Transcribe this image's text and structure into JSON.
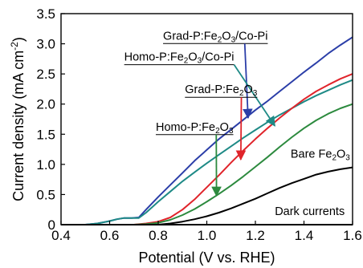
{
  "chart_data": {
    "type": "line",
    "xlabel": "Potential (V vs. RHE)",
    "ylabel": {
      "main": "Current density (mA cm",
      "sup": "-2",
      "close": ")"
    },
    "xlim": [
      0.4,
      1.6
    ],
    "ylim": [
      0,
      3.5
    ],
    "x_ticks": [
      "0.4",
      "0.6",
      "0.8",
      "1.0",
      "1.2",
      "1.4",
      "1.6"
    ],
    "y_ticks": [
      "0",
      "0.5",
      "1.0",
      "1.5",
      "2.0",
      "2.5",
      "3.0",
      "3.5"
    ],
    "grid": false,
    "series": [
      {
        "id": "grad_copi",
        "color": "#2b3ea8",
        "label_parts": [
          {
            "t": "Grad-P:Fe",
            "sub": false
          },
          {
            "t": "2",
            "sub": true
          },
          {
            "t": "O",
            "sub": false
          },
          {
            "t": "3",
            "sub": true
          },
          {
            "t": "/Co-Pi",
            "sub": false
          }
        ],
        "underline": true,
        "x": [
          0.5,
          0.55,
          0.6,
          0.63,
          0.66,
          0.69,
          0.72,
          0.75,
          0.8,
          0.85,
          0.9,
          0.95,
          1.0,
          1.05,
          1.1,
          1.15,
          1.2,
          1.25,
          1.3,
          1.35,
          1.4,
          1.45,
          1.5,
          1.55,
          1.6
        ],
        "y": [
          0.0,
          0.02,
          0.06,
          0.09,
          0.11,
          0.11,
          0.12,
          0.25,
          0.46,
          0.66,
          0.86,
          1.06,
          1.24,
          1.42,
          1.58,
          1.74,
          1.9,
          2.05,
          2.21,
          2.37,
          2.53,
          2.68,
          2.84,
          2.98,
          3.11
        ]
      },
      {
        "id": "homo_copi",
        "color": "#1e8a86",
        "label_parts": [
          {
            "t": "Homo-P:Fe",
            "sub": false
          },
          {
            "t": "2",
            "sub": true
          },
          {
            "t": "O",
            "sub": false
          },
          {
            "t": "3",
            "sub": true
          },
          {
            "t": "/Co-Pi",
            "sub": false
          }
        ],
        "underline": true,
        "x": [
          0.5,
          0.55,
          0.6,
          0.63,
          0.66,
          0.69,
          0.72,
          0.75,
          0.8,
          0.85,
          0.9,
          0.95,
          1.0,
          1.05,
          1.1,
          1.15,
          1.2,
          1.25,
          1.3,
          1.35,
          1.4,
          1.45,
          1.5,
          1.55,
          1.6
        ],
        "y": [
          0.0,
          0.02,
          0.06,
          0.09,
          0.11,
          0.11,
          0.11,
          0.2,
          0.38,
          0.55,
          0.72,
          0.87,
          1.02,
          1.16,
          1.3,
          1.44,
          1.57,
          1.7,
          1.82,
          1.93,
          2.04,
          2.14,
          2.23,
          2.32,
          2.4
        ]
      },
      {
        "id": "grad",
        "color": "#e0242b",
        "label_parts": [
          {
            "t": "Grad-P:Fe",
            "sub": false
          },
          {
            "t": "2",
            "sub": true
          },
          {
            "t": "O",
            "sub": false
          },
          {
            "t": "3",
            "sub": true
          }
        ],
        "underline": true,
        "x": [
          0.7,
          0.75,
          0.8,
          0.85,
          0.9,
          0.95,
          1.0,
          1.05,
          1.1,
          1.15,
          1.2,
          1.25,
          1.3,
          1.35,
          1.4,
          1.45,
          1.5,
          1.55,
          1.6
        ],
        "y": [
          0.0,
          0.02,
          0.05,
          0.12,
          0.25,
          0.42,
          0.62,
          0.82,
          1.03,
          1.23,
          1.42,
          1.6,
          1.77,
          1.93,
          2.08,
          2.21,
          2.32,
          2.42,
          2.5
        ]
      },
      {
        "id": "homo",
        "color": "#2c8a3e",
        "label_parts": [
          {
            "t": "Homo-P:Fe",
            "sub": false
          },
          {
            "t": "2",
            "sub": true
          },
          {
            "t": "O",
            "sub": false
          },
          {
            "t": "3",
            "sub": true
          }
        ],
        "underline": true,
        "x": [
          0.7,
          0.75,
          0.8,
          0.85,
          0.9,
          0.95,
          1.0,
          1.05,
          1.1,
          1.15,
          1.2,
          1.25,
          1.3,
          1.35,
          1.4,
          1.45,
          1.5,
          1.55,
          1.6
        ],
        "y": [
          0.0,
          0.01,
          0.03,
          0.08,
          0.16,
          0.26,
          0.38,
          0.51,
          0.65,
          0.8,
          0.96,
          1.12,
          1.29,
          1.45,
          1.6,
          1.73,
          1.84,
          1.93,
          2.0
        ]
      },
      {
        "id": "bare",
        "color": "#000000",
        "label_parts": [
          {
            "t": "Bare Fe",
            "sub": false
          },
          {
            "t": "2",
            "sub": true
          },
          {
            "t": "O",
            "sub": false
          },
          {
            "t": "3",
            "sub": true
          }
        ],
        "underline": false,
        "x": [
          0.8,
          0.85,
          0.9,
          0.95,
          1.0,
          1.05,
          1.1,
          1.15,
          1.2,
          1.25,
          1.3,
          1.35,
          1.4,
          1.45,
          1.5,
          1.55,
          1.6
        ],
        "y": [
          0.0,
          0.02,
          0.05,
          0.09,
          0.14,
          0.2,
          0.27,
          0.35,
          0.43,
          0.52,
          0.61,
          0.69,
          0.76,
          0.83,
          0.88,
          0.92,
          0.95
        ]
      },
      {
        "id": "dark",
        "color": "#000000",
        "label_parts": [
          {
            "t": "Dark currents",
            "sub": false
          }
        ],
        "underline": false,
        "x": [
          0.4,
          1.6
        ],
        "y": [
          0.0,
          0.0
        ]
      }
    ],
    "annotations": [
      {
        "series": "grad_copi",
        "text_x": 0.82,
        "text_y": 3.07,
        "arrow_to": [
          1.17,
          1.77
        ]
      },
      {
        "series": "homo_copi",
        "text_x": 0.66,
        "text_y": 2.72,
        "arrow_to": [
          1.28,
          1.64
        ]
      },
      {
        "series": "grad",
        "text_x": 0.91,
        "text_y": 2.18,
        "arrow_to": [
          1.14,
          1.08
        ]
      },
      {
        "series": "homo",
        "text_x": 0.79,
        "text_y": 1.56,
        "arrow_to": [
          1.04,
          0.48
        ]
      },
      {
        "series": "bare",
        "text_x": 1.345,
        "text_y": 1.11,
        "arrow_to": null
      },
      {
        "series": "dark",
        "text_x": 1.28,
        "text_y": 0.16,
        "arrow_to": null
      }
    ]
  }
}
